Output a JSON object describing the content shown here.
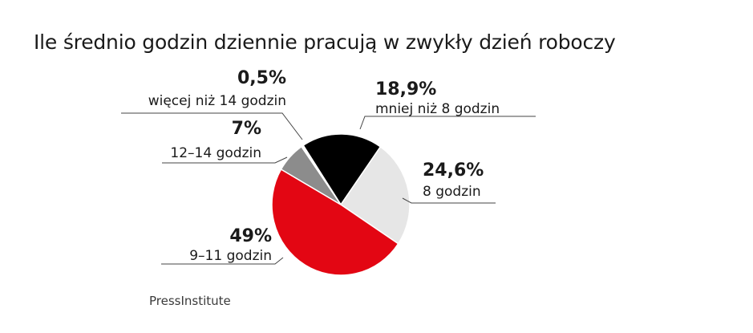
{
  "chart_data": {
    "type": "pie",
    "title": "Ile średnio godzin dziennie pracują w zwykły dzień roboczy",
    "slices": [
      {
        "label": "mniej niż 8 godzin",
        "value": 18.9,
        "value_label": "18,9%",
        "color": "#000000"
      },
      {
        "label": "8 godzin",
        "value": 24.6,
        "value_label": "24,6%",
        "color": "#e6e6e6"
      },
      {
        "label": "9–11 godzin",
        "value": 49,
        "value_label": "49%",
        "color": "#e30613"
      },
      {
        "label": "12–14 godzin",
        "value": 7,
        "value_label": "7%",
        "color": "#8c8c8c"
      },
      {
        "label": "więcej niż 14 godzin",
        "value": 0.5,
        "value_label": "0,5%",
        "color": "#ffffff"
      }
    ],
    "source": "PressInstitute"
  }
}
